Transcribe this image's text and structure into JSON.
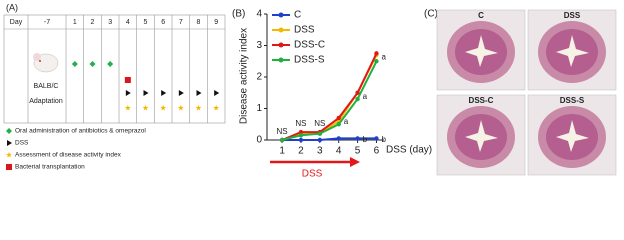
{
  "panel_a": {
    "label": "(A)",
    "header": [
      "Day",
      "-7",
      "1",
      "2",
      "3",
      "4",
      "5",
      "6",
      "7",
      "8",
      "9"
    ],
    "mouse": "BALB/C",
    "phase": "Adaptation",
    "legend": [
      "Oral administration of antibiotics & omeprazol",
      "DSS",
      "Assessment of disease activity index",
      "Bacterial transplantation"
    ]
  },
  "chart_data": {
    "type": "line",
    "panel_label": "(B)",
    "y_label": "Disease activity index",
    "x_label": "DSS (day)",
    "treatment_label": "DSS",
    "x": [
      1,
      2,
      3,
      4,
      5,
      6
    ],
    "xlim": [
      0.2,
      6.4
    ],
    "xticks": [
      1,
      2,
      3,
      4,
      5,
      6
    ],
    "ylim": [
      0,
      4
    ],
    "yticks": [
      0,
      1,
      2,
      3,
      4
    ],
    "series": [
      {
        "name": "C",
        "color": "#1f3fd0",
        "values": [
          0,
          0,
          0,
          0.05,
          0.05,
          0.05
        ]
      },
      {
        "name": "DSS",
        "color": "#f5b800",
        "values": [
          0,
          0.2,
          0.2,
          0.6,
          1.5,
          2.7
        ]
      },
      {
        "name": "DSS-C",
        "color": "#e01818",
        "values": [
          0,
          0.25,
          0.25,
          0.7,
          1.5,
          2.75
        ]
      },
      {
        "name": "DSS-S",
        "color": "#20b040",
        "values": [
          0,
          0.15,
          0.2,
          0.5,
          1.3,
          2.5
        ]
      }
    ],
    "annotations": [
      {
        "text": "NS",
        "x": 1
      },
      {
        "text": "NS",
        "x": 2
      },
      {
        "text": "NS",
        "x": 3
      },
      {
        "text": "a",
        "x": 4
      },
      {
        "text": "a",
        "x": 5
      },
      {
        "text": "a",
        "x": 6
      },
      {
        "text": "b",
        "x": 5
      },
      {
        "text": "b",
        "x": 6
      }
    ]
  },
  "panel_c": {
    "label": "(C)",
    "images": [
      "C",
      "DSS",
      "DSS-C",
      "DSS-S"
    ]
  }
}
